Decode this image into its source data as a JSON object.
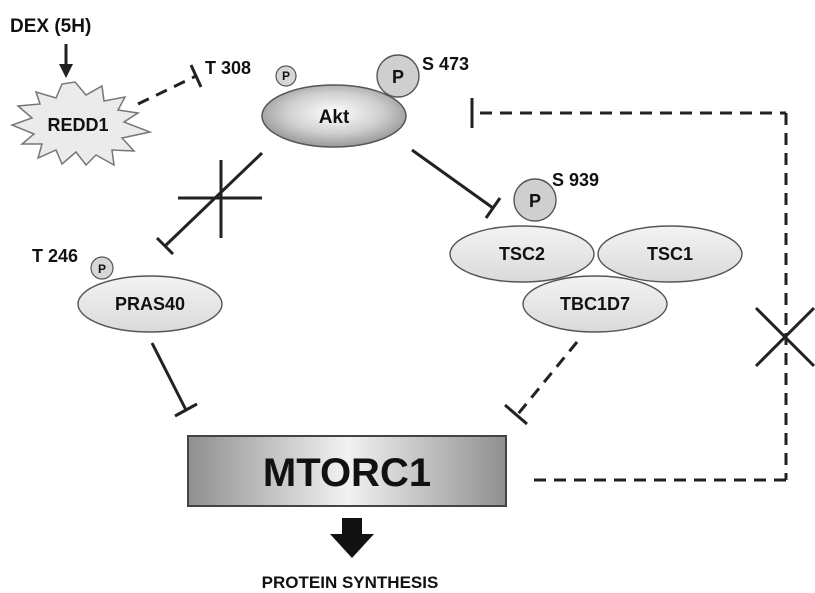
{
  "stimulus": {
    "label": "DEX (5H)"
  },
  "nodes": {
    "redd1": "REDD1",
    "akt": "Akt",
    "pras40": "PRAS40",
    "tsc2": "TSC2",
    "tsc1": "TSC1",
    "tbc1d7": "TBC1D7",
    "mtorc1": "MTORC1"
  },
  "sites": {
    "akt_t308": "T 308",
    "akt_s473": "S 473",
    "tsc2_s939": "S 939",
    "pras40_t246": "T 246"
  },
  "phospho_label": "P",
  "output": "PROTEIN SYNTHESIS",
  "colors": {
    "node_fill": "#e6e6e6",
    "akt_fill": "#a9a9a9",
    "phospho_fill": "#cfcfcf",
    "mtorc1_fill": "#b0b0b0",
    "line": "#222222"
  }
}
